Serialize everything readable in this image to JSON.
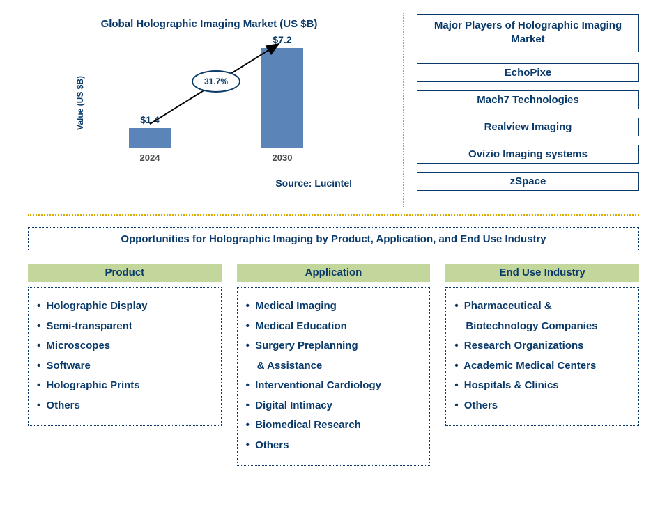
{
  "chart": {
    "type": "bar",
    "title": "Global Holographic Imaging Market (US $B)",
    "y_axis_label": "Value (US $B)",
    "categories": [
      "2024",
      "2030"
    ],
    "values": [
      1.4,
      7.2
    ],
    "value_labels": [
      "$1.4",
      "$7.2"
    ],
    "bar_color": "#5b85b8",
    "bar_width_ratio": 0.32,
    "ylim": [
      0,
      8
    ],
    "axis_color": "#888888",
    "title_color": "#0a3a6a",
    "text_color": "#0a3a6a",
    "background_color": "#ffffff",
    "title_fontsize": 15,
    "label_fontsize": 12,
    "tick_fontsize": 13,
    "value_fontsize": 14,
    "growth_label": "31.7%",
    "arrow_color": "#000000",
    "source": "Source: Lucintel"
  },
  "players": {
    "title": "Major Players of Holographic Imaging Market",
    "border_color": "#0a3a6a",
    "text_color": "#0a3a6a",
    "items": [
      "EchoPixe",
      "Mach7 Technologies",
      "Realview Imaging",
      "Ovizio Imaging systems",
      "zSpace"
    ]
  },
  "dividers": {
    "color": "#d9a800",
    "style": "dotted"
  },
  "opportunities": {
    "title": "Opportunities for Holographic Imaging by Product, Application, and End Use Industry",
    "header_bg": "#c3d69b",
    "text_color": "#0a3a6a",
    "border_color": "#0a3a6a",
    "columns": [
      {
        "header": "Product",
        "items": [
          [
            "Holographic Display"
          ],
          [
            "Semi-transparent"
          ],
          [
            "Microscopes"
          ],
          [
            "Software"
          ],
          [
            "Holographic Prints"
          ],
          [
            "Others"
          ]
        ]
      },
      {
        "header": "Application",
        "items": [
          [
            "Medical Imaging"
          ],
          [
            "Medical Education"
          ],
          [
            "Surgery Preplanning",
            "& Assistance"
          ],
          [
            "Interventional Cardiology"
          ],
          [
            "Digital Intimacy"
          ],
          [
            "Biomedical Research"
          ],
          [
            "Others"
          ]
        ]
      },
      {
        "header": "End Use Industry",
        "items": [
          [
            "Pharmaceutical &",
            "Biotechnology Companies"
          ],
          [
            "Research Organizations"
          ],
          [
            "Academic Medical Centers"
          ],
          [
            "Hospitals & Clinics"
          ],
          [
            "Others"
          ]
        ]
      }
    ]
  }
}
